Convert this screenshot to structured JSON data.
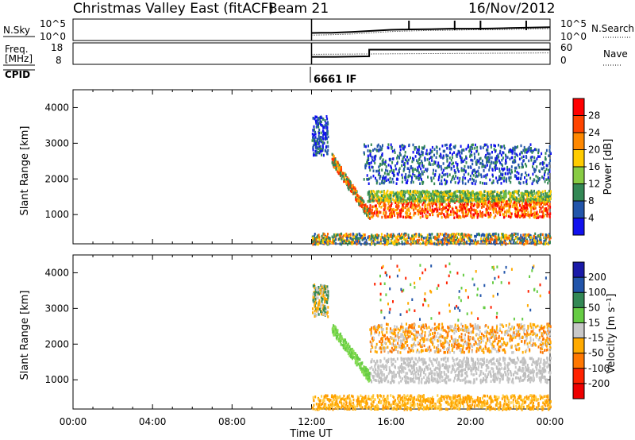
{
  "header": {
    "station": "Christmas Valley East (fitACF)",
    "beam": "Beam 21",
    "date": "16/Nov/2012"
  },
  "chart_data": [
    {
      "type": "line",
      "name": "noise",
      "ylabel_left": "N.Sky",
      "ylabel_right": "N.Search",
      "left_ticks": [
        "10^5",
        "10^0"
      ],
      "right_ticks": [
        "10^5",
        "10^0"
      ],
      "x_start_hours": 12,
      "series": [
        {
          "name": "N.Sky",
          "style": "solid",
          "x": [
            12,
            12.5,
            13,
            14,
            15,
            16,
            17,
            18,
            19,
            20,
            21,
            22,
            23,
            24
          ],
          "y": [
            0.35,
            0.36,
            0.36,
            0.4,
            0.45,
            0.5,
            0.52,
            0.53,
            0.55,
            0.55,
            0.56,
            0.58,
            0.6,
            0.62
          ]
        },
        {
          "name": "N.Search",
          "style": "dotted",
          "x": [
            12,
            13,
            14,
            15,
            16,
            17,
            18,
            19,
            20,
            21,
            22,
            23,
            24
          ],
          "y": [
            0.25,
            0.27,
            0.3,
            0.36,
            0.42,
            0.45,
            0.47,
            0.48,
            0.5,
            0.5,
            0.52,
            0.54,
            0.55
          ]
        }
      ],
      "spikes_hours": [
        16.9,
        19.2,
        20.5,
        22.8
      ]
    },
    {
      "type": "line",
      "name": "frequency",
      "ylabel_left": "Freq. [MHz]",
      "ylabel_right": "Nave",
      "left_ticks": [
        "18",
        "8"
      ],
      "right_ticks": [
        "60",
        "0"
      ],
      "series": [
        {
          "name": "Freq",
          "style": "solid",
          "x": [
            12,
            13.2,
            14.9,
            14.9,
            24
          ],
          "y": [
            10.2,
            10.2,
            10.6,
            15.3,
            15.3
          ]
        },
        {
          "name": "Nave",
          "style": "dotted",
          "x": [
            12,
            24
          ],
          "y": [
            28,
            32
          ]
        }
      ]
    },
    {
      "type": "line",
      "name": "cpid",
      "ylabel_left": "CPID",
      "labels": [
        {
          "x": 12,
          "text": "6661 IF"
        }
      ]
    },
    {
      "type": "heatmap",
      "name": "power",
      "ylabel": "Slant Range [km]",
      "yticks": [
        1000,
        2000,
        3000,
        4000
      ],
      "ylim": [
        180,
        4500
      ],
      "xlim": [
        0,
        24
      ],
      "colorbar": {
        "label": "Power [dB]",
        "ticks": [
          "28",
          "24",
          "20",
          "16",
          "12",
          "8",
          "4"
        ],
        "colors": [
          "#ff0000",
          "#ff4400",
          "#ff8800",
          "#ffcc00",
          "#88cc44",
          "#338855",
          "#2255aa",
          "#1111ee"
        ]
      },
      "features": [
        {
          "kind": "band",
          "desc": "strong echo band",
          "t": [
            14.9,
            24
          ],
          "range": [
            950,
            1500
          ],
          "colors": [
            "#ff0000",
            "#ff5500",
            "#ffaa00"
          ]
        },
        {
          "kind": "band",
          "desc": "green band",
          "t": [
            14.8,
            24
          ],
          "range": [
            1400,
            1700
          ],
          "colors": [
            "#66bb44",
            "#338855",
            "#ffcc00"
          ]
        },
        {
          "kind": "band",
          "desc": "weak scatter",
          "t": [
            14.6,
            24
          ],
          "range": [
            1900,
            3000
          ],
          "colors": [
            "#2255aa",
            "#338855",
            "#1111ee"
          ]
        },
        {
          "kind": "diagonal",
          "desc": "descending echo",
          "t": [
            13.0,
            14.9
          ],
          "range": [
            2600,
            1000
          ],
          "colors": [
            "#ff3300",
            "#ffaa00",
            "#338855"
          ]
        },
        {
          "kind": "patch",
          "desc": "early echoes",
          "t": [
            12.0,
            12.8
          ],
          "range": [
            2700,
            3800
          ],
          "colors": [
            "#2255aa",
            "#338855",
            "#1111ee"
          ]
        },
        {
          "kind": "band",
          "desc": "near-range clutter",
          "t": [
            12.0,
            24
          ],
          "range": [
            200,
            500
          ],
          "colors": [
            "#2255aa",
            "#338855",
            "#ff6600",
            "#ffcc00"
          ]
        }
      ]
    },
    {
      "type": "heatmap",
      "name": "velocity",
      "ylabel": "Slant Range [km]",
      "yticks": [
        1000,
        2000,
        3000,
        4000
      ],
      "ylim": [
        180,
        4500
      ],
      "xlim": [
        0,
        24
      ],
      "xticks": [
        "00:00",
        "04:00",
        "08:00",
        "12:00",
        "16:00",
        "20:00",
        "00:00"
      ],
      "xlabel": "Time UT",
      "colorbar": {
        "label": "Velocity [m s⁻¹]",
        "ticks": [
          "200",
          "100",
          "50",
          "15",
          "-15",
          "-50",
          "-100",
          "-200"
        ],
        "colors": [
          "#1a1aa8",
          "#2255aa",
          "#338855",
          "#66cc44",
          "#c8c8c8",
          "#ffaa00",
          "#ff7700",
          "#ff2200",
          "#ee0000"
        ]
      },
      "features": [
        {
          "kind": "band",
          "desc": "ground scatter",
          "t": [
            14.9,
            24
          ],
          "range": [
            950,
            1650
          ],
          "colors": [
            "#c8c8c8",
            "#bdbdbd"
          ]
        },
        {
          "kind": "band",
          "desc": "grey scatter upper",
          "t": [
            14.9,
            24
          ],
          "range": [
            1800,
            2600
          ],
          "colors": [
            "#c8c8c8",
            "#ffaa00",
            "#ff7700"
          ]
        },
        {
          "kind": "diagonal",
          "desc": "descending green echo",
          "t": [
            13.0,
            14.9
          ],
          "range": [
            2500,
            1100
          ],
          "colors": [
            "#66cc44",
            "#88dd55"
          ]
        },
        {
          "kind": "patch",
          "desc": "early echoes",
          "t": [
            12.0,
            12.8
          ],
          "range": [
            2800,
            3700
          ],
          "colors": [
            "#ffaa00",
            "#338855",
            "#c8c8c8"
          ]
        },
        {
          "kind": "band",
          "desc": "near-range orange",
          "t": [
            12.0,
            24
          ],
          "range": [
            200,
            600
          ],
          "colors": [
            "#ffaa00",
            "#ff9900",
            "#ffcc44"
          ]
        },
        {
          "kind": "scatter",
          "desc": "sparse points",
          "t": [
            15,
            24
          ],
          "range": [
            2700,
            4300
          ],
          "colors": [
            "#2255aa",
            "#ff2200",
            "#66cc44",
            "#ffaa00"
          ]
        }
      ]
    }
  ]
}
